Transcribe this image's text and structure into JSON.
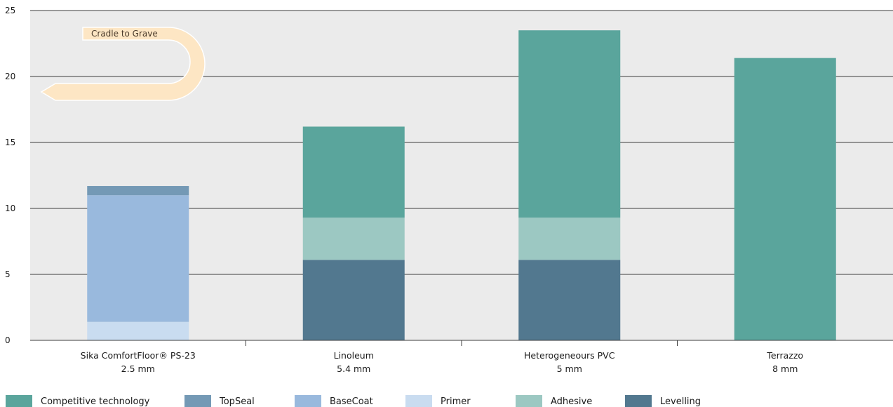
{
  "chart_data": {
    "type": "bar",
    "stacked": true,
    "categories": [
      "Sika ComfortFloor® PS-23",
      "Linoleum",
      "Heterogeneours PVC",
      "Terrazzo"
    ],
    "category_sublabels": [
      "2.5 mm",
      "5.4 mm",
      "5 mm",
      "8 mm"
    ],
    "ylim": [
      0,
      25
    ],
    "yticks": [
      0,
      5,
      10,
      15,
      20,
      25
    ],
    "grid": true,
    "legend_position": "bottom-left",
    "annotation": "Cradle to Grave",
    "series": [
      {
        "name": "Primer",
        "color": "#c9dcf0",
        "values": [
          1.4,
          0,
          0,
          0
        ]
      },
      {
        "name": "BaseCoat",
        "color": "#99b9dd",
        "values": [
          9.6,
          0,
          0,
          0
        ]
      },
      {
        "name": "TopSeal",
        "color": "#7499b5",
        "values": [
          0.7,
          0,
          0,
          0
        ]
      },
      {
        "name": "Levelling",
        "color": "#52788f",
        "values": [
          0,
          6.1,
          6.1,
          0
        ]
      },
      {
        "name": "Adhesive",
        "color": "#9cc8c2",
        "values": [
          0,
          3.2,
          3.2,
          0
        ]
      },
      {
        "name": "Competitive technology",
        "color": "#5aa59c",
        "values": [
          0,
          6.9,
          14.2,
          21.4
        ]
      }
    ],
    "legend_order": [
      "Competitive technology",
      "TopSeal",
      "BaseCoat",
      "Primer",
      "Adhesive",
      "Levelling"
    ]
  }
}
